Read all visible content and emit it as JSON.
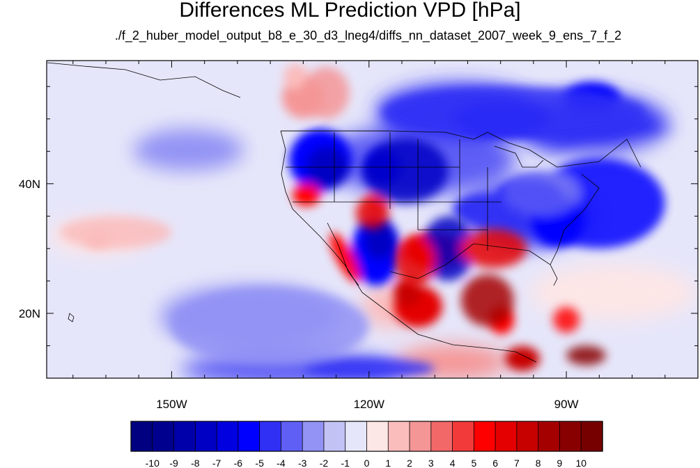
{
  "header": {
    "title": "Differences ML Prediction VPD [hPa]",
    "subtitle": "./f_2_huber_model_output_b8_e_30_d3_lneg4/diffs_nn_dataset_2007_week_9_ens_7_f_2"
  },
  "map": {
    "variable": "VPD difference",
    "units": "hPa",
    "lon_range": [
      -169,
      -70
    ],
    "lat_range": [
      10,
      59
    ],
    "lon_ticks": [
      {
        "lon": -150,
        "label": "150W"
      },
      {
        "lon": -120,
        "label": "120W"
      },
      {
        "lon": -90,
        "label": "90W"
      }
    ],
    "lat_ticks": [
      {
        "lat": 20,
        "label": "20N"
      },
      {
        "lat": 40,
        "label": "40N"
      }
    ],
    "ocean_base_value": -1,
    "regions": [
      {
        "name": "canada-north-negative",
        "value": -5,
        "lon": [
          -118,
          -78
        ],
        "lat": [
          47,
          55
        ]
      },
      {
        "name": "great-basin-negative",
        "value": -8,
        "lon": [
          -121,
          -108
        ],
        "lat": [
          37,
          47
        ]
      },
      {
        "name": "arizona-mexico-negative",
        "value": -8,
        "lon": [
          -112,
          -104
        ],
        "lat": [
          25,
          35
        ]
      },
      {
        "name": "eastern-us-negative",
        "value": -6,
        "lon": [
          -95,
          -75
        ],
        "lat": [
          30,
          44
        ]
      },
      {
        "name": "midwest-negative",
        "value": -4,
        "lon": [
          -100,
          -88
        ],
        "lat": [
          35,
          42
        ]
      },
      {
        "name": "central-pacific-negative",
        "value": -3,
        "lon": [
          -150,
          -120
        ],
        "lat": [
          12,
          24
        ]
      },
      {
        "name": "tropical-pacific-negative",
        "value": -5,
        "lon": [
          -130,
          -110
        ],
        "lat": [
          10,
          13
        ]
      },
      {
        "name": "california-positive",
        "value": 6,
        "lon": [
          -122,
          -117
        ],
        "lat": [
          33,
          38
        ]
      },
      {
        "name": "baja-positive",
        "value": 6,
        "lon": [
          -116,
          -110
        ],
        "lat": [
          24,
          32
        ]
      },
      {
        "name": "texas-positive",
        "value": 6,
        "lon": [
          -106,
          -96
        ],
        "lat": [
          27,
          33
        ]
      },
      {
        "name": "mexico-west-positive",
        "value": 8,
        "lon": [
          -106,
          -98
        ],
        "lat": [
          18,
          26
        ]
      },
      {
        "name": "yucatan-positive",
        "value": 5,
        "lon": [
          -92,
          -88
        ],
        "lat": [
          17,
          21
        ]
      },
      {
        "name": "central-america-positive",
        "value": 9,
        "lon": [
          -90,
          -84
        ],
        "lat": [
          12,
          15
        ]
      },
      {
        "name": "bc-positive",
        "value": 2,
        "lon": [
          -130,
          -123
        ],
        "lat": [
          50,
          58
        ]
      },
      {
        "name": "pacific-positive",
        "value": 1,
        "lon": [
          -167,
          -150
        ],
        "lat": [
          30,
          35
        ]
      }
    ]
  },
  "colorbar": {
    "levels": [
      "-10",
      "-9",
      "-8",
      "-7",
      "-6",
      "-5",
      "-4",
      "-3",
      "-2",
      "-1",
      "0",
      "1",
      "2",
      "3",
      "4",
      "5",
      "6",
      "7",
      "8",
      "9",
      "10"
    ],
    "colors": [
      "#000080",
      "#00008f",
      "#0000aa",
      "#0000c4",
      "#0000e0",
      "#0000ff",
      "#3030f5",
      "#5f5ff5",
      "#9393f5",
      "#c2c2f5",
      "#e6e6fa",
      "#fde6e6",
      "#fbbcbc",
      "#f59696",
      "#f26868",
      "#f23a3a",
      "#ff0000",
      "#e40000",
      "#c70000",
      "#a50000",
      "#880000",
      "#760000"
    ]
  }
}
